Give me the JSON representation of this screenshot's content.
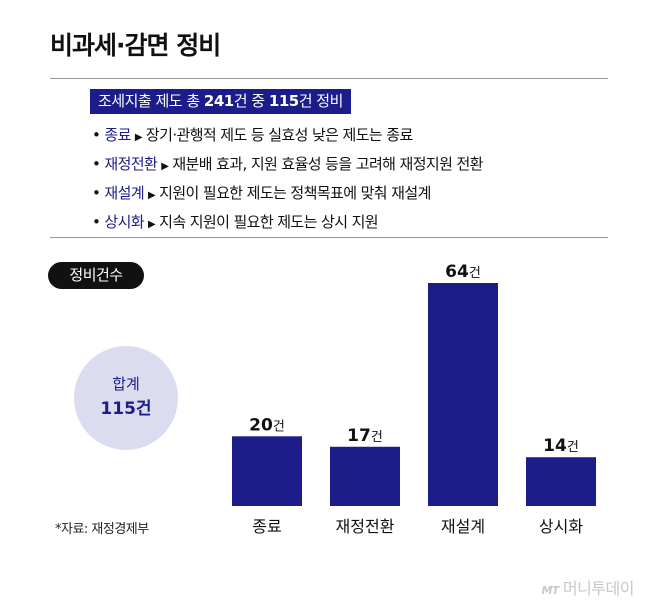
{
  "title": "비과세·감면 정비",
  "banner": {
    "prefix": "조세지출 제도 총",
    "total": "241",
    "middle": "건 중",
    "reviewed": "115",
    "suffix": "건 정비"
  },
  "policies": [
    {
      "name": "종료",
      "desc": "장기·관행적 제도 등 실효성 낮은 제도는 종료"
    },
    {
      "name": "재정전환",
      "desc": "재분배 효과, 지원 효율성 등을 고려해 재정지원 전환"
    },
    {
      "name": "재설계",
      "desc": "지원이 필요한 제도는 정책목표에 맞춰 재설계"
    },
    {
      "name": "상시화",
      "desc": "지속 지원이 필요한 제도는 상시 지원"
    }
  ],
  "pill_label": "정비건수",
  "total": {
    "label": "합계",
    "value": "115건"
  },
  "source": "*자료: 재정경제부",
  "watermark": {
    "mark": "MT",
    "text": "머니투데이"
  },
  "colors": {
    "accent": "#1c1c8a",
    "circle": "#dcdcf0",
    "rule": "#9a9a9a"
  },
  "chart_data": {
    "type": "bar",
    "categories": [
      "종료",
      "재정전환",
      "재설계",
      "상시화"
    ],
    "values": [
      20,
      17,
      64,
      14
    ],
    "unit": "건",
    "title": "",
    "xlabel": "",
    "ylabel": "",
    "ylim": [
      0,
      64
    ],
    "grid": false,
    "bar_color": "#1c1c8a"
  }
}
